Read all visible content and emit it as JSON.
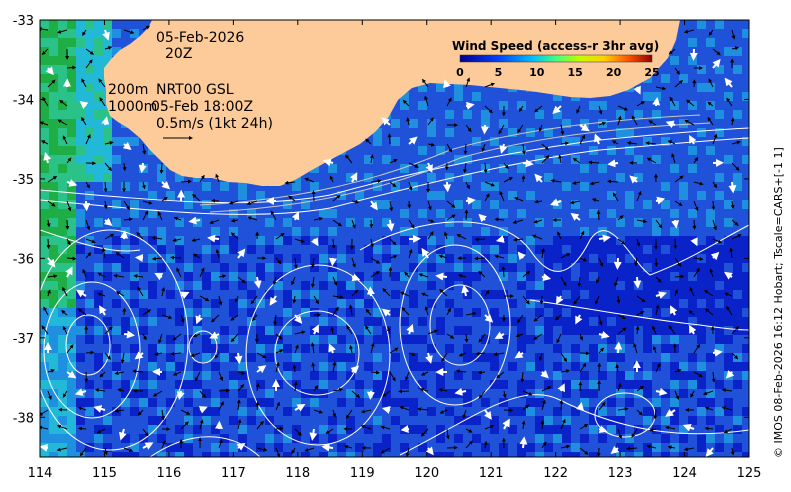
{
  "annotations": {
    "date": "05-Feb-2026",
    "hour": "20Z",
    "depth1": "200m",
    "depth2": "1000m",
    "nrt": "NRT00 GSL",
    "nrt_time": "05-Feb 18:00Z",
    "scale": "0.5m/s (1kt 24h)"
  },
  "colorbar": {
    "title": "Wind Speed (access-r 3hr avg)",
    "ticks": [
      "0",
      "5",
      "10",
      "15",
      "20",
      "25"
    ],
    "range": [
      0,
      25
    ]
  },
  "credit": "© IMOS 08-Feb-2026 16:12 Hobart; Tscale=CARS+[-1 1]",
  "chart_data": {
    "type": "map",
    "x_ticks": [
      "114",
      "115",
      "116",
      "117",
      "118",
      "119",
      "120",
      "121",
      "122",
      "123",
      "124",
      "125"
    ],
    "y_ticks": [
      "-33",
      "-34",
      "-35",
      "-36",
      "-37",
      "-38"
    ],
    "xlim": [
      114,
      125
    ],
    "ylim": [
      -38.5,
      -33
    ],
    "land_color": "#fdcb99",
    "ocean_colors": [
      "#0a23c8",
      "#1f52d8",
      "#1f8fe0",
      "#22b8d8",
      "#2bc28a",
      "#1fae45"
    ]
  }
}
